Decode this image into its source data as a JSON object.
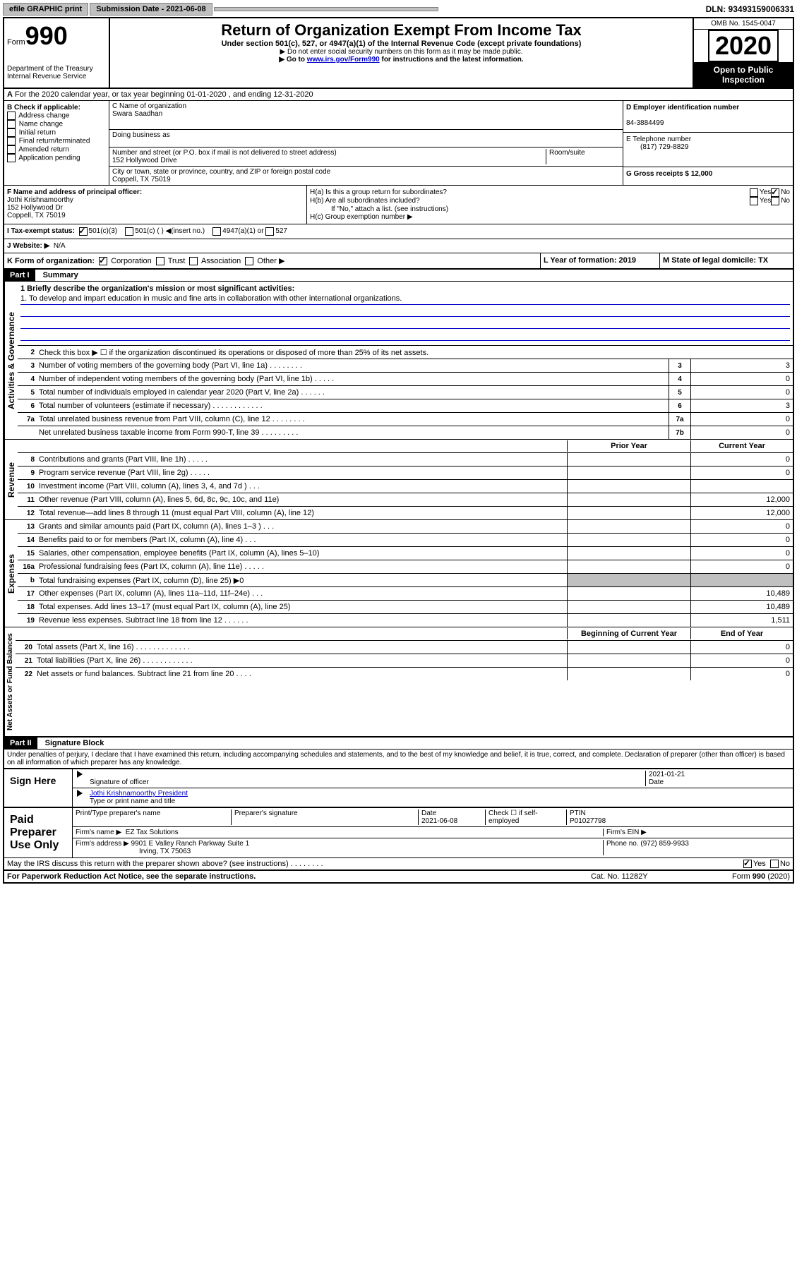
{
  "topbar": {
    "efile": "efile GRAPHIC print",
    "submission_label": "Submission Date - 2021-06-08",
    "dln": "DLN: 93493159006331"
  },
  "header": {
    "form_label": "Form",
    "form_number": "990",
    "dept": "Department of the Treasury",
    "irs": "Internal Revenue Service",
    "title": "Return of Organization Exempt From Income Tax",
    "subtitle": "Under section 501(c), 527, or 4947(a)(1) of the Internal Revenue Code (except private foundations)",
    "instr1": "▶ Do not enter social security numbers on this form as it may be made public.",
    "instr2_pre": "▶ Go to ",
    "instr2_link": "www.irs.gov/Form990",
    "instr2_post": " for instructions and the latest information.",
    "omb": "OMB No. 1545-0047",
    "year": "2020",
    "open_public": "Open to Public Inspection"
  },
  "section_a": "For the 2020 calendar year, or tax year beginning 01-01-2020   , and ending 12-31-2020",
  "col_b": {
    "label": "B Check if applicable:",
    "items": [
      "Address change",
      "Name change",
      "Initial return",
      "Final return/terminated",
      "Amended return",
      "Application pending"
    ]
  },
  "col_c": {
    "name_label": "C Name of organization",
    "name": "Swara Saadhan",
    "dba_label": "Doing business as",
    "addr_label": "Number and street (or P.O. box if mail is not delivered to street address)",
    "room_label": "Room/suite",
    "addr": "152 Hollywood Drive",
    "city_label": "City or town, state or province, country, and ZIP or foreign postal code",
    "city": "Coppell, TX  75019"
  },
  "col_d": {
    "ein_label": "D Employer identification number",
    "ein": "84-3884499",
    "phone_label": "E Telephone number",
    "phone": "(817) 729-8829",
    "gross_label": "G Gross receipts $ 12,000"
  },
  "row_f": {
    "label": "F  Name and address of principal officer:",
    "name": "Jothi Krishnamoorthy",
    "addr1": "152 Hollywood Dr",
    "addr2": "Coppell, TX  75019"
  },
  "row_h": {
    "ha": "H(a)  Is this a group return for subordinates?",
    "hb": "H(b)  Are all subordinates included?",
    "hb_note": "If \"No,\" attach a list. (see instructions)",
    "hc": "H(c)  Group exemption number ▶",
    "yes": "Yes",
    "no": "No"
  },
  "row_i": {
    "label": "I   Tax-exempt status:",
    "opt1": "501(c)(3)",
    "opt2": "501(c) (  ) ◀(insert no.)",
    "opt3": "4947(a)(1) or",
    "opt4": "527"
  },
  "row_j": {
    "label": "J   Website: ▶",
    "value": "N/A"
  },
  "row_k": {
    "label": "K Form of organization:",
    "corp": "Corporation",
    "trust": "Trust",
    "assoc": "Association",
    "other": "Other ▶"
  },
  "row_l": {
    "label": "L Year of formation: 2019"
  },
  "row_m": {
    "label": "M State of legal domicile: TX"
  },
  "part1": {
    "header": "Part I",
    "title": "Summary",
    "line1_label": "1  Briefly describe the organization's mission or most significant activities:",
    "line1_text": "1. To develop and impart education in music and fine arts in collaboration with other international organizations.",
    "line2": "Check this box ▶ ☐  if the organization discontinued its operations or disposed of more than 25% of its net assets.",
    "prior_year": "Prior Year",
    "current_year": "Current Year",
    "begin_year": "Beginning of Current Year",
    "end_year": "End of Year",
    "rows_gov": [
      {
        "num": "3",
        "text": "Number of voting members of the governing body (Part VI, line 1a)  .  .  .  .  .  .  .  .",
        "box": "3",
        "val": "3"
      },
      {
        "num": "4",
        "text": "Number of independent voting members of the governing body (Part VI, line 1b)  .  .  .  .  .",
        "box": "4",
        "val": "0"
      },
      {
        "num": "5",
        "text": "Total number of individuals employed in calendar year 2020 (Part V, line 2a)  .  .  .  .  .  .",
        "box": "5",
        "val": "0"
      },
      {
        "num": "6",
        "text": "Total number of volunteers (estimate if necessary)  .  .  .  .  .  .  .  .  .  .  .  .",
        "box": "6",
        "val": "3"
      },
      {
        "num": "7a",
        "text": "Total unrelated business revenue from Part VIII, column (C), line 12  .  .  .  .  .  .  .  .",
        "box": "7a",
        "val": "0"
      },
      {
        "num": "",
        "text": "Net unrelated business taxable income from Form 990-T, line 39  .  .  .  .  .  .  .  .  .",
        "box": "7b",
        "val": "0"
      }
    ],
    "rows_rev": [
      {
        "num": "8",
        "text": "Contributions and grants (Part VIII, line 1h)  .  .  .  .  .",
        "prior": "",
        "curr": "0"
      },
      {
        "num": "9",
        "text": "Program service revenue (Part VIII, line 2g)  .  .  .  .  .",
        "prior": "",
        "curr": "0"
      },
      {
        "num": "10",
        "text": "Investment income (Part VIII, column (A), lines 3, 4, and 7d )  .  .  .",
        "prior": "",
        "curr": ""
      },
      {
        "num": "11",
        "text": "Other revenue (Part VIII, column (A), lines 5, 6d, 8c, 9c, 10c, and 11e)",
        "prior": "",
        "curr": "12,000"
      },
      {
        "num": "12",
        "text": "Total revenue—add lines 8 through 11 (must equal Part VIII, column (A), line 12)",
        "prior": "",
        "curr": "12,000"
      }
    ],
    "rows_exp": [
      {
        "num": "13",
        "text": "Grants and similar amounts paid (Part IX, column (A), lines 1–3 )  .  .  .",
        "prior": "",
        "curr": "0"
      },
      {
        "num": "14",
        "text": "Benefits paid to or for members (Part IX, column (A), line 4)  .  .  .",
        "prior": "",
        "curr": "0"
      },
      {
        "num": "15",
        "text": "Salaries, other compensation, employee benefits (Part IX, column (A), lines 5–10)",
        "prior": "",
        "curr": "0"
      },
      {
        "num": "16a",
        "text": "Professional fundraising fees (Part IX, column (A), line 11e)  .  .  .  .  .",
        "prior": "",
        "curr": "0"
      },
      {
        "num": "b",
        "text": "Total fundraising expenses (Part IX, column (D), line 25) ▶0",
        "prior": "gray",
        "curr": "gray"
      },
      {
        "num": "17",
        "text": "Other expenses (Part IX, column (A), lines 11a–11d, 11f–24e)  .  .  .",
        "prior": "",
        "curr": "10,489"
      },
      {
        "num": "18",
        "text": "Total expenses. Add lines 13–17 (must equal Part IX, column (A), line 25)",
        "prior": "",
        "curr": "10,489"
      },
      {
        "num": "19",
        "text": "Revenue less expenses. Subtract line 18 from line 12  .  .  .  .  .  .",
        "prior": "",
        "curr": "1,511"
      }
    ],
    "rows_net": [
      {
        "num": "20",
        "text": "Total assets (Part X, line 16)  .  .  .  .  .  .  .  .  .  .  .  .  .",
        "prior": "",
        "curr": "0"
      },
      {
        "num": "21",
        "text": "Total liabilities (Part X, line 26)  .  .  .  .  .  .  .  .  .  .  .  .",
        "prior": "",
        "curr": "0"
      },
      {
        "num": "22",
        "text": "Net assets or fund balances. Subtract line 21 from line 20  .  .  .  .",
        "prior": "",
        "curr": "0"
      }
    ],
    "labels": {
      "gov": "Activities & Governance",
      "rev": "Revenue",
      "exp": "Expenses",
      "net": "Net Assets or Fund Balances"
    }
  },
  "part2": {
    "header": "Part II",
    "title": "Signature Block",
    "penalty": "Under penalties of perjury, I declare that I have examined this return, including accompanying schedules and statements, and to the best of my knowledge and belief, it is true, correct, and complete. Declaration of preparer (other than officer) is based on all information of which preparer has any knowledge.",
    "sign_here": "Sign Here",
    "sig_officer": "Signature of officer",
    "sig_date": "2021-01-21",
    "date_label": "Date",
    "officer_name": "Jothi Krishnamoorthy  President",
    "type_name": "Type or print name and title",
    "paid_preparer": "Paid Preparer Use Only",
    "print_name": "Print/Type preparer's name",
    "prep_sig": "Preparer's signature",
    "prep_date": "2021-06-08",
    "check_if": "Check ☐ if self-employed",
    "ptin_label": "PTIN",
    "ptin": "P01027798",
    "firm_name_label": "Firm's name   ▶",
    "firm_name": "EZ Tax Solutions",
    "firm_ein": "Firm's EIN ▶",
    "firm_addr_label": "Firm's address ▶",
    "firm_addr": "9901 E Valley Ranch Parkway Suite 1",
    "firm_city": "Irving, TX  75063",
    "firm_phone_label": "Phone no. (972) 859-9933",
    "discuss": "May the IRS discuss this return with the preparer shown above? (see instructions)  .  .  .  .  .  .  .  .",
    "paperwork": "For Paperwork Reduction Act Notice, see the separate instructions.",
    "cat": "Cat. No. 11282Y",
    "form_foot": "Form 990 (2020)"
  }
}
